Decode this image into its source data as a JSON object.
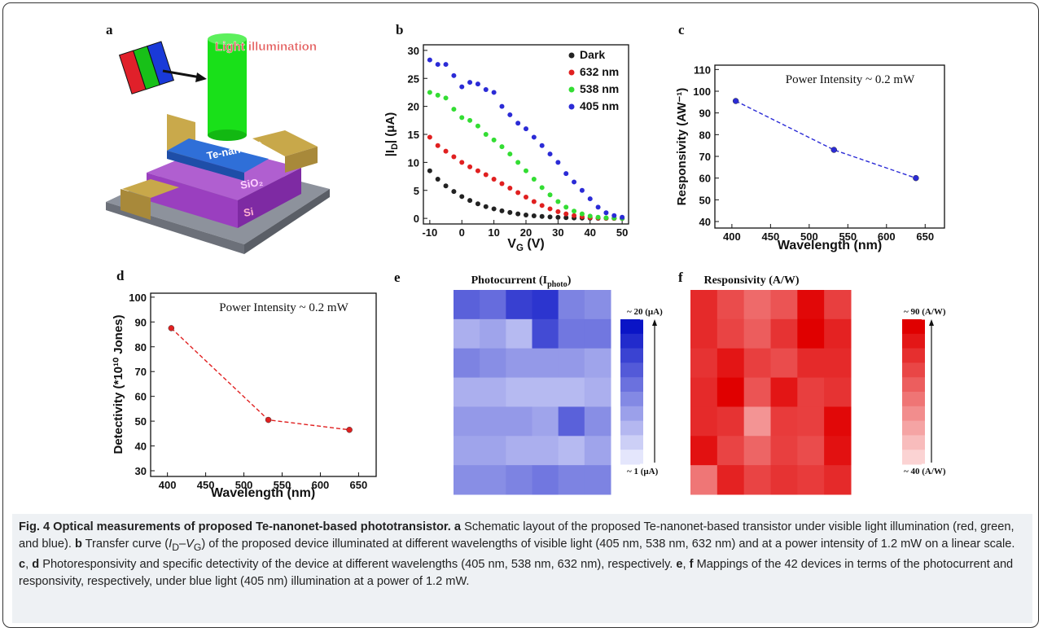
{
  "schematic": {
    "panel_label": "a",
    "labels": [
      "Light illumination",
      "Te-nanonet",
      "SiO₂",
      "Si"
    ]
  },
  "chart_data": [
    {
      "type": "scatter",
      "panel_label": "b",
      "x": [
        -10,
        -7.5,
        -5,
        -2.5,
        0,
        2.5,
        5,
        7.5,
        10,
        12.5,
        15,
        17.5,
        20,
        22.5,
        25,
        27.5,
        30,
        32.5,
        35,
        37.5,
        40,
        42.5,
        45,
        47.5,
        50
      ],
      "series": [
        {
          "name": "Dark",
          "color": "#222222",
          "values": [
            8.5,
            7,
            5.8,
            4.8,
            3.9,
            3.2,
            2.6,
            2.1,
            1.7,
            1.35,
            1.05,
            0.8,
            0.6,
            0.45,
            0.35,
            0.25,
            0.18,
            0.12,
            0.08,
            0.05,
            0.03,
            0.02,
            0.01,
            0.005,
            0
          ]
        },
        {
          "name": "632 nm",
          "color": "#e02020",
          "values": [
            14.5,
            13,
            12,
            11,
            10,
            9.2,
            8.5,
            7.8,
            7,
            6.2,
            5.4,
            4.6,
            3.8,
            3,
            2.3,
            1.7,
            1.2,
            0.8,
            0.5,
            0.3,
            0.15,
            0.08,
            0.04,
            0.02,
            0
          ]
        },
        {
          "name": "538 nm",
          "color": "#33dd33",
          "values": [
            22.5,
            22,
            21.5,
            19.5,
            18,
            17.5,
            16.5,
            15,
            14,
            12.8,
            11.5,
            10,
            8.5,
            7,
            5.5,
            4.2,
            3,
            2,
            1.3,
            0.8,
            0.4,
            0.2,
            0.1,
            0.05,
            0
          ]
        },
        {
          "name": "405 nm",
          "color": "#2b2bd6",
          "values": [
            28.3,
            27.5,
            27.5,
            25.5,
            23.5,
            24.3,
            24,
            23,
            22.5,
            20,
            18.5,
            17,
            16,
            14.5,
            13,
            11.5,
            10,
            8,
            6.5,
            5,
            3.5,
            2,
            1,
            0.5,
            0.2
          ]
        }
      ],
      "xlim": [
        -12,
        52
      ],
      "ylim": [
        -1,
        31
      ],
      "xticks": [
        -10,
        0,
        10,
        20,
        30,
        40,
        50
      ],
      "yticks": [
        0,
        5,
        10,
        15,
        20,
        25,
        30
      ],
      "xlabel": [
        "V",
        "G",
        " (V)"
      ],
      "ylabel": [
        "|I",
        "D",
        "| (μA)"
      ],
      "legend": "upper-right"
    },
    {
      "type": "line",
      "panel_label": "c",
      "x": [
        405,
        532,
        638
      ],
      "values": [
        95.5,
        73,
        60
      ],
      "color": "#2b2bd6",
      "line_style": "dashed",
      "annotation": "Power Intensity ~ 0.2 mW",
      "xlim": [
        378,
        675
      ],
      "ylim": [
        37,
        112
      ],
      "xticks": [
        400,
        450,
        500,
        550,
        600,
        650
      ],
      "yticks": [
        40,
        50,
        60,
        70,
        80,
        90,
        100,
        110
      ],
      "xlabel": "Wavelength (nm)",
      "ylabel": "Responsivity (AW⁻¹)"
    },
    {
      "type": "line",
      "panel_label": "d",
      "x": [
        405,
        532,
        638
      ],
      "values": [
        87.5,
        50.5,
        46.5
      ],
      "color": "#e02020",
      "line_style": "dashed",
      "annotation": "Power Intensity ~ 0.2 mW",
      "xlim": [
        378,
        673
      ],
      "ylim": [
        27.7,
        101.6
      ],
      "xticks": [
        400,
        450,
        500,
        550,
        600,
        650
      ],
      "yticks": [
        30,
        40,
        50,
        60,
        70,
        80,
        90,
        100
      ],
      "xlabel": "Wavelength (nm)",
      "ylabel": "Detectivity (*10¹⁰ Jones)"
    },
    {
      "type": "heatmap",
      "panel_label": "e",
      "title": [
        "Photocurrent (I",
        "photo",
        ")"
      ],
      "values": [
        [
          13,
          12,
          16,
          17,
          10,
          9
        ],
        [
          6,
          7,
          5,
          15,
          11,
          11
        ],
        [
          10,
          9,
          8,
          8,
          8,
          7
        ],
        [
          6,
          6,
          5,
          5,
          5,
          6
        ],
        [
          8,
          8,
          8,
          7,
          13,
          9
        ],
        [
          7,
          7,
          6,
          6,
          5,
          7
        ],
        [
          9,
          9,
          10,
          11,
          10,
          10
        ]
      ],
      "zlim": [
        1,
        20
      ],
      "colors": [
        "#e4e6fc",
        "#0a14c6"
      ],
      "colorbar_ticks": [
        {
          "value": 20,
          "label": "~ 20 (μA)"
        },
        {
          "value": 1,
          "label": "~ 1 (μA)"
        }
      ]
    },
    {
      "type": "heatmap",
      "panel_label": "f",
      "title": "Responsivity (A/W)",
      "values": [
        [
          80,
          72,
          65,
          70,
          88,
          75
        ],
        [
          80,
          74,
          68,
          78,
          90,
          82
        ],
        [
          78,
          85,
          75,
          72,
          80,
          80
        ],
        [
          80,
          90,
          70,
          85,
          75,
          78
        ],
        [
          80,
          78,
          55,
          76,
          75,
          88
        ],
        [
          86,
          74,
          66,
          75,
          72,
          86
        ],
        [
          62,
          82,
          74,
          78,
          76,
          80
        ]
      ],
      "zlim": [
        40,
        90
      ],
      "colors": [
        "#fbd3d3",
        "#e00000"
      ],
      "colorbar_ticks": [
        {
          "value": 90,
          "label": "~ 90 (A/W)"
        },
        {
          "value": 40,
          "label": "~ 40 (A/W)"
        }
      ]
    }
  ],
  "caption": {
    "runs": [
      {
        "text": "Fig. 4 Optical measurements of proposed Te-nanonet-based phototransistor.",
        "style": "bold"
      },
      {
        "text": " a",
        "style": "bold"
      },
      {
        "text": " Schematic layout of the proposed Te-nanonet-based transistor under visible light illumination (red, green, and blue). ",
        "style": "plain"
      },
      {
        "text": "b",
        "style": "bold"
      },
      {
        "text": " Transfer curve (",
        "style": "plain"
      },
      {
        "text": "I",
        "style": "italic"
      },
      {
        "text": "D",
        "style": "sub"
      },
      {
        "text": "–",
        "style": "plain"
      },
      {
        "text": "V",
        "style": "italic"
      },
      {
        "text": "G",
        "style": "sub"
      },
      {
        "text": ") of the proposed device illuminated at different wavelengths of visible light (405 nm, 538 nm, 632 nm) and at a power intensity of 1.2 mW on a linear scale. ",
        "style": "plain"
      },
      {
        "text": "c",
        "style": "bold"
      },
      {
        "text": ", ",
        "style": "plain"
      },
      {
        "text": "d",
        "style": "bold"
      },
      {
        "text": " Photoresponsivity and specific detectivity of the device at different wavelengths (405 nm, 538 nm, 632 nm), respectively. ",
        "style": "plain"
      },
      {
        "text": "e",
        "style": "bold"
      },
      {
        "text": ", ",
        "style": "plain"
      },
      {
        "text": "f",
        "style": "bold"
      },
      {
        "text": " Mappings of the 42 devices in terms of the photocurrent and responsivity, respectively, under blue light (405 nm) illumination at a power of 1.2 mW.",
        "style": "plain"
      }
    ]
  }
}
